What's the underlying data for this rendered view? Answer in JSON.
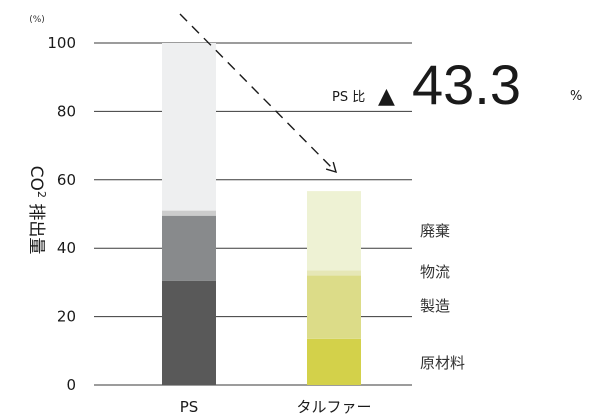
{
  "chart_data": {
    "type": "bar",
    "stacked": true,
    "unit_label": "(%)",
    "ylabel": "CO2 排出量",
    "ylim": [
      0,
      100
    ],
    "yticks": [
      0,
      20,
      40,
      60,
      80,
      100
    ],
    "grid": true,
    "categories": [
      "PS",
      "タルファー"
    ],
    "series": [
      {
        "name": "原材料",
        "values": [
          30.5,
          13.5
        ],
        "colors": [
          "#595959",
          "#d3d14a"
        ]
      },
      {
        "name": "製造",
        "values": [
          19.0,
          18.5
        ],
        "colors": [
          "#888a8c",
          "#dcdc88"
        ]
      },
      {
        "name": "物流",
        "values": [
          1.5,
          1.5
        ],
        "colors": [
          "#cccccc",
          "#e6e7b6"
        ]
      },
      {
        "name": "廃棄",
        "values": [
          49.0,
          23.2
        ],
        "colors": [
          "#eeeff0",
          "#eef2d4"
        ]
      }
    ],
    "annotation": {
      "prefix": "PS 比",
      "marker": "▲",
      "value": "43.3",
      "suffix": "%"
    }
  }
}
